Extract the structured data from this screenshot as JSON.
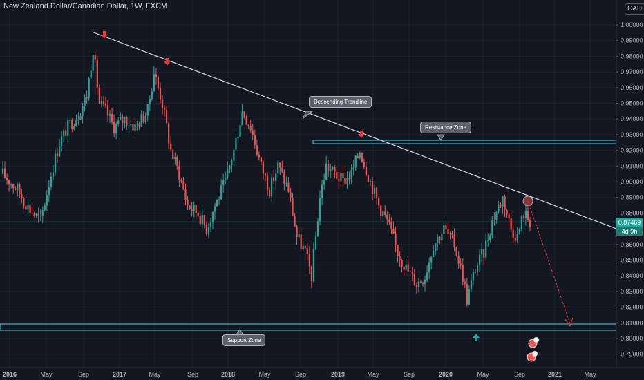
{
  "title": "New Zealand Dollar/Canadian Dollar, 1W, FXCM",
  "currency": "CAD",
  "last_price": "0.87469",
  "countdown": "4d 9h",
  "annotations": {
    "trendline": "Descending Trendline",
    "resistance": "Resistance Zone",
    "support": "Support Zone"
  },
  "colors": {
    "background": "#131722",
    "bull": "#26a69a",
    "bear": "#ef5350",
    "zone": "#4dd0e1",
    "trendline": "#d1d4dc",
    "arrow_down": "#e53935",
    "arrow_up": "#26a69a"
  },
  "chart_data": {
    "type": "candlestick",
    "symbol": "NZDCAD",
    "timeframe": "1W",
    "x_ticks": [
      "2016",
      "May",
      "Sep",
      "2017",
      "May",
      "Sep",
      "2018",
      "May",
      "Sep",
      "2019",
      "May",
      "Sep",
      "2020",
      "May",
      "Sep",
      "2021",
      "May"
    ],
    "y_ticks": [
      "1.00000",
      "0.99000",
      "0.98000",
      "0.97000",
      "0.96000",
      "0.95000",
      "0.94000",
      "0.93000",
      "0.92000",
      "0.91000",
      "0.90000",
      "0.89000",
      "0.88000",
      "0.87000",
      "0.86000",
      "0.85000",
      "0.84000",
      "0.83000",
      "0.82000",
      "0.81000",
      "0.80000",
      "0.79000"
    ],
    "ylim": [
      0.785,
      1.0075
    ],
    "series": [
      {
        "date": "2015-12-28",
        "close": 0.905
      },
      {
        "date": "2016-02-15",
        "close": 0.895
      },
      {
        "date": "2016-03-28",
        "close": 0.882
      },
      {
        "date": "2016-05-02",
        "close": 0.875
      },
      {
        "date": "2016-06-06",
        "close": 0.905
      },
      {
        "date": "2016-07-04",
        "close": 0.925
      },
      {
        "date": "2016-08-01",
        "close": 0.935
      },
      {
        "date": "2016-09-05",
        "close": 0.943
      },
      {
        "date": "2016-10-03",
        "close": 0.955
      },
      {
        "date": "2016-10-24",
        "close": 0.985
      },
      {
        "date": "2016-11-14",
        "close": 0.95
      },
      {
        "date": "2016-12-05",
        "close": 0.945
      },
      {
        "date": "2017-01-02",
        "close": 0.935
      },
      {
        "date": "2017-02-06",
        "close": 0.94
      },
      {
        "date": "2017-03-13",
        "close": 0.935
      },
      {
        "date": "2017-04-24",
        "close": 0.945
      },
      {
        "date": "2017-05-15",
        "close": 0.97
      },
      {
        "date": "2017-06-12",
        "close": 0.95
      },
      {
        "date": "2017-07-10",
        "close": 0.92
      },
      {
        "date": "2017-08-07",
        "close": 0.905
      },
      {
        "date": "2017-09-04",
        "close": 0.885
      },
      {
        "date": "2017-10-09",
        "close": 0.88
      },
      {
        "date": "2017-11-06",
        "close": 0.87
      },
      {
        "date": "2017-12-04",
        "close": 0.885
      },
      {
        "date": "2018-01-08",
        "close": 0.9
      },
      {
        "date": "2018-02-05",
        "close": 0.92
      },
      {
        "date": "2018-03-05",
        "close": 0.945
      },
      {
        "date": "2018-04-02",
        "close": 0.935
      },
      {
        "date": "2018-05-07",
        "close": 0.91
      },
      {
        "date": "2018-06-04",
        "close": 0.895
      },
      {
        "date": "2018-07-02",
        "close": 0.91
      },
      {
        "date": "2018-08-06",
        "close": 0.895
      },
      {
        "date": "2018-09-03",
        "close": 0.865
      },
      {
        "date": "2018-10-01",
        "close": 0.855
      },
      {
        "date": "2018-10-22",
        "close": 0.84
      },
      {
        "date": "2018-11-19",
        "close": 0.89
      },
      {
        "date": "2018-12-10",
        "close": 0.91
      },
      {
        "date": "2019-01-07",
        "close": 0.905
      },
      {
        "date": "2019-02-04",
        "close": 0.9
      },
      {
        "date": "2019-03-04",
        "close": 0.905
      },
      {
        "date": "2019-04-01",
        "close": 0.92
      },
      {
        "date": "2019-05-06",
        "close": 0.9
      },
      {
        "date": "2019-06-03",
        "close": 0.885
      },
      {
        "date": "2019-07-01",
        "close": 0.875
      },
      {
        "date": "2019-08-05",
        "close": 0.855
      },
      {
        "date": "2019-09-02",
        "close": 0.845
      },
      {
        "date": "2019-10-07",
        "close": 0.835
      },
      {
        "date": "2019-11-04",
        "close": 0.84
      },
      {
        "date": "2019-12-02",
        "close": 0.86
      },
      {
        "date": "2020-01-06",
        "close": 0.87
      },
      {
        "date": "2020-02-10",
        "close": 0.86
      },
      {
        "date": "2020-03-09",
        "close": 0.84
      },
      {
        "date": "2020-03-23",
        "close": 0.825
      },
      {
        "date": "2020-04-20",
        "close": 0.845
      },
      {
        "date": "2020-05-18",
        "close": 0.855
      },
      {
        "date": "2020-06-15",
        "close": 0.875
      },
      {
        "date": "2020-07-20",
        "close": 0.89
      },
      {
        "date": "2020-08-17",
        "close": 0.87
      },
      {
        "date": "2020-09-07",
        "close": 0.865
      },
      {
        "date": "2020-09-28",
        "close": 0.88
      },
      {
        "date": "2020-10-19",
        "close": 0.875
      }
    ],
    "resistance_zone": [
      0.9245,
      0.9265
    ],
    "support_zone": [
      0.8055,
      0.8085
    ],
    "descending_trendline": [
      {
        "date": "2016-09-26",
        "price": 0.9955
      },
      {
        "date": "2021-08-30",
        "price": 0.8655
      }
    ],
    "projection": [
      {
        "date": "2020-10-19",
        "price": 0.889
      },
      {
        "date": "2021-04-05",
        "price": 0.808
      }
    ]
  }
}
